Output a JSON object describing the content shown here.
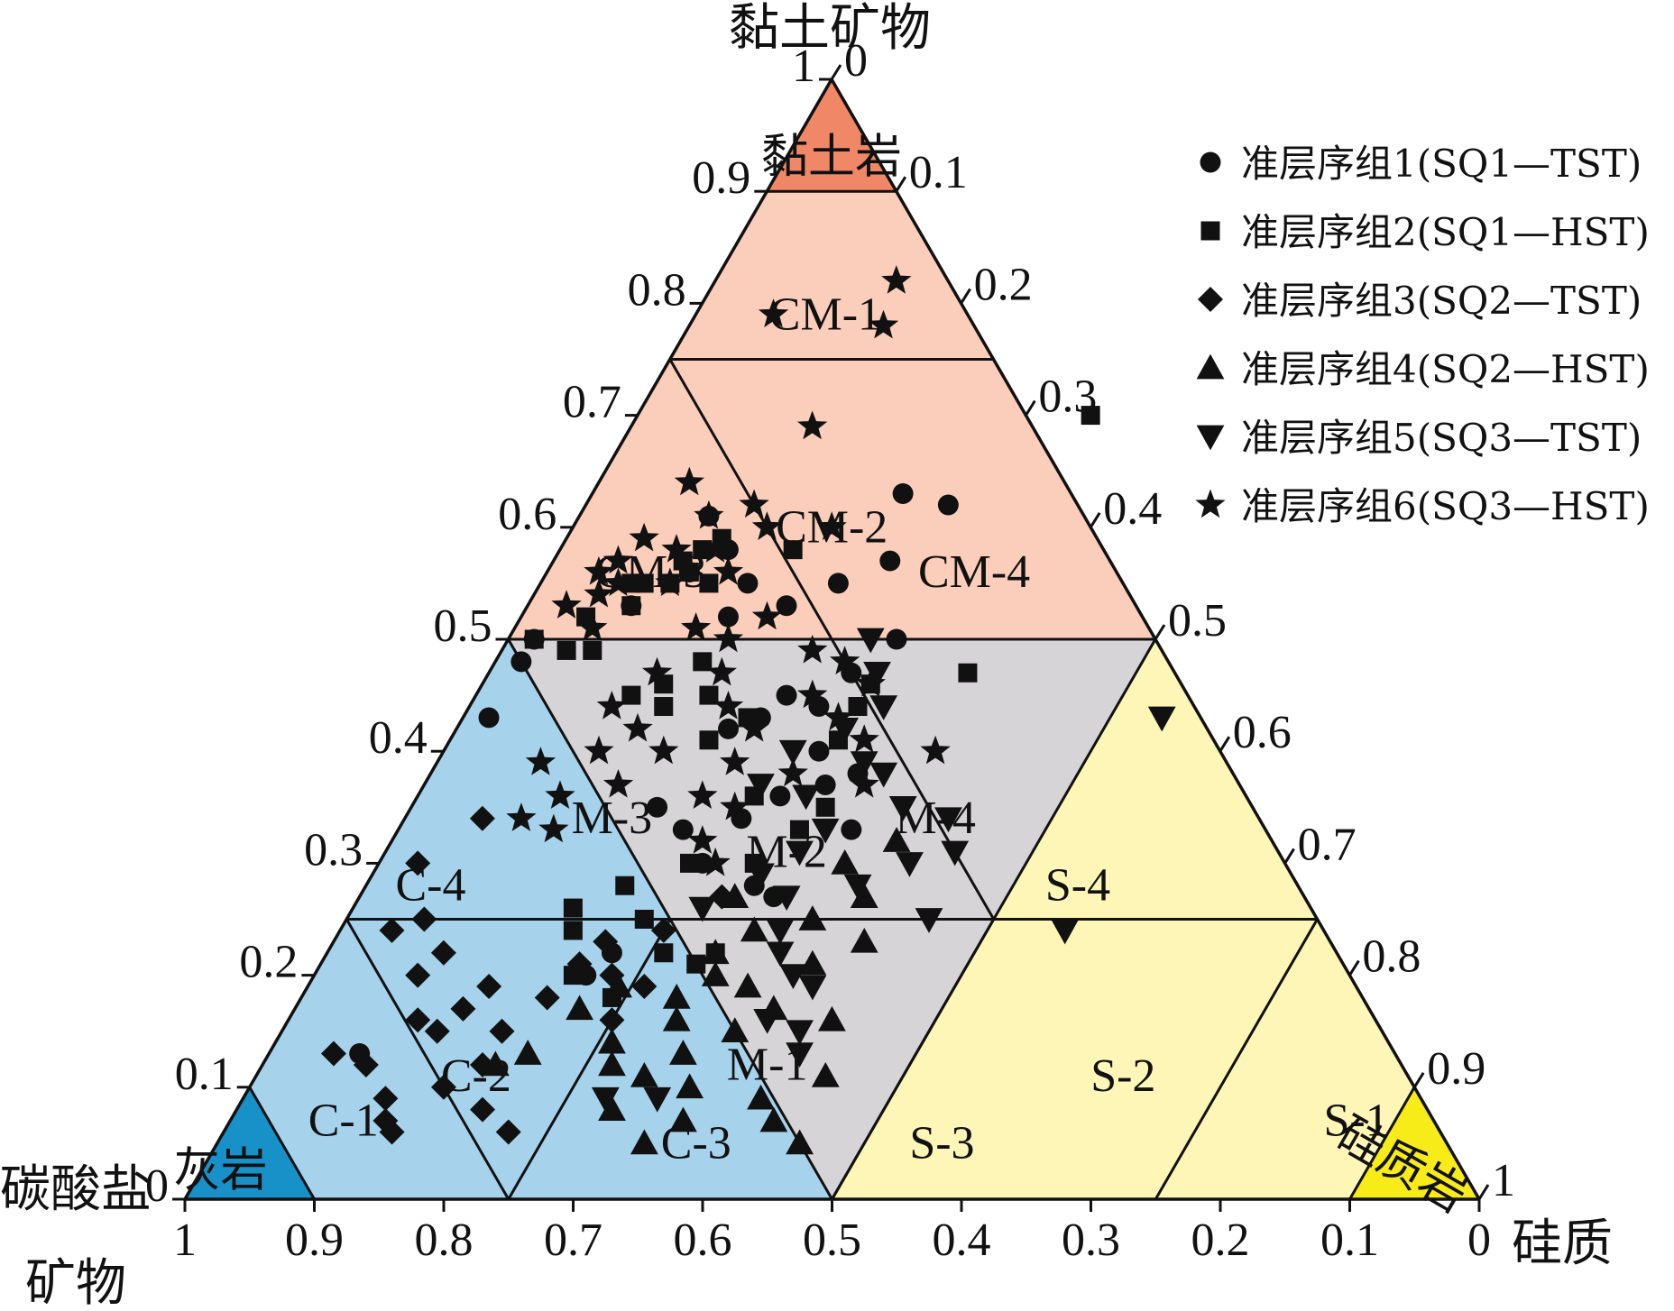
{
  "chart_data": {
    "type": "scatter",
    "subtype": "ternary",
    "axes": {
      "top": {
        "label": "黏土矿物"
      },
      "left": {
        "label_line1": "碳酸盐",
        "label_line2": "矿物"
      },
      "right": {
        "label": "硅质"
      }
    },
    "ticks": {
      "bottom": [
        "1",
        "0.9",
        "0.8",
        "0.7",
        "0.6",
        "0.5",
        "0.4",
        "0.3",
        "0.2",
        "0.1",
        "0"
      ],
      "left": [
        "0",
        "0.1",
        "0.2",
        "0.3",
        "0.4",
        "0.5",
        "0.6",
        "0.7",
        "0.8",
        "0.9",
        "1"
      ],
      "right": [
        "0",
        "0.1",
        "0.2",
        "0.3",
        "0.4",
        "0.5",
        "0.6",
        "0.7",
        "0.8",
        "0.9",
        "1"
      ]
    },
    "zones": {
      "clay_rock": "黏土岩",
      "limestone": "灰岩",
      "siliceous_rock": "硅质岩",
      "CM1": "CM-1",
      "CM2": "CM-2",
      "CM3": "CM-3",
      "CM4": "CM-4",
      "M1": "M-1",
      "M2": "M-2",
      "M3": "M-3",
      "M4": "M-4",
      "C1": "C-1",
      "C2": "C-2",
      "C3": "C-3",
      "C4": "C-4",
      "S1": "S-1",
      "S2": "S-2",
      "S3": "S-3",
      "S4": "S-4"
    },
    "zone_colors": {
      "clay_rock": "#f08868",
      "clay_rich": "#fbcdbb",
      "mixed": "#d6d4d6",
      "carbonate": "#a6d2ec",
      "limestone": "#1890c8",
      "siliceous": "#fdf6b6",
      "siliceous_rock": "#f8ec18"
    },
    "legend": [
      {
        "label": "准层序组1(SQ1—TST)",
        "marker": "circle"
      },
      {
        "label": "准层序组2(SQ1—HST)",
        "marker": "square"
      },
      {
        "label": "准层序组3(SQ2—TST)",
        "marker": "diamond"
      },
      {
        "label": "准层序组4(SQ2—HST)",
        "marker": "triangle-up"
      },
      {
        "label": "准层序组5(SQ3—TST)",
        "marker": "triangle-down"
      },
      {
        "label": "准层序组6(SQ3—HST)",
        "marker": "star"
      }
    ],
    "series": [
      {
        "marker": "circle",
        "points": [
          [
            0.62,
            0.28
          ],
          [
            0.63,
            0.24
          ],
          [
            0.57,
            0.26
          ],
          [
            0.55,
            0.23
          ],
          [
            0.53,
            0.2
          ],
          [
            0.55,
            0.16
          ],
          [
            0.52,
            0.16
          ],
          [
            0.58,
            0.13
          ],
          [
            0.56,
            0.11
          ],
          [
            0.61,
            0.1
          ],
          [
            0.53,
            0.08
          ],
          [
            0.48,
            0.02
          ],
          [
            0.43,
            0.02
          ],
          [
            0.5,
            0.02
          ],
          [
            0.45,
            0.24
          ],
          [
            0.43,
            0.23
          ],
          [
            0.44,
            0.27
          ],
          [
            0.37,
            0.31
          ],
          [
            0.36,
            0.28
          ],
          [
            0.38,
            0.33
          ],
          [
            0.34,
            0.26
          ],
          [
            0.3,
            0.25
          ],
          [
            0.28,
            0.3
          ],
          [
            0.22,
            0.22
          ],
          [
            0.2,
            0.21
          ],
          [
            0.13,
            0.07
          ],
          [
            0.33,
            0.35
          ],
          [
            0.27,
            0.32
          ],
          [
            0.5,
            0.3
          ],
          [
            0.4,
            0.29
          ],
          [
            0.33,
            0.22
          ],
          [
            0.42,
            0.21
          ],
          [
            0.47,
            0.28
          ],
          [
            0.35,
            0.19
          ]
        ]
      },
      {
        "marker": "square",
        "points": [
          [
            0.7,
            0.35
          ],
          [
            0.58,
            0.18
          ],
          [
            0.55,
            0.13
          ],
          [
            0.59,
            0.12
          ],
          [
            0.58,
            0.11
          ],
          [
            0.56,
            0.11
          ],
          [
            0.57,
            0.1
          ],
          [
            0.55,
            0.1
          ],
          [
            0.55,
            0.08
          ],
          [
            0.55,
            0.07
          ],
          [
            0.53,
            0.08
          ],
          [
            0.52,
            0.05
          ],
          [
            0.49,
            0.07
          ],
          [
            0.49,
            0.05
          ],
          [
            0.5,
            0.02
          ],
          [
            0.46,
            0.14
          ],
          [
            0.48,
            0.16
          ],
          [
            0.45,
            0.12
          ],
          [
            0.44,
            0.15
          ],
          [
            0.45,
            0.18
          ],
          [
            0.41,
            0.2
          ],
          [
            0.43,
            0.22
          ],
          [
            0.47,
            0.37
          ],
          [
            0.46,
            0.3
          ],
          [
            0.44,
            0.3
          ],
          [
            0.41,
            0.3
          ],
          [
            0.36,
            0.26
          ],
          [
            0.35,
            0.32
          ],
          [
            0.33,
            0.31
          ],
          [
            0.3,
            0.24
          ],
          [
            0.28,
            0.2
          ],
          [
            0.26,
            0.17
          ],
          [
            0.25,
            0.23
          ],
          [
            0.22,
            0.3
          ],
          [
            0.21,
            0.29
          ],
          [
            0.24,
            0.18
          ],
          [
            0.18,
            0.24
          ],
          [
            0.2,
            0.2
          ],
          [
            0.3,
            0.29
          ],
          [
            0.22,
            0.26
          ]
        ]
      },
      {
        "marker": "diamond",
        "points": [
          [
            0.06,
            0.22
          ],
          [
            0.08,
            0.19
          ],
          [
            0.07,
            0.12
          ],
          [
            0.06,
            0.13
          ],
          [
            0.09,
            0.11
          ],
          [
            0.13,
            0.05
          ],
          [
            0.12,
            0.08
          ],
          [
            0.1,
            0.15
          ],
          [
            0.12,
            0.17
          ],
          [
            0.15,
            0.17
          ],
          [
            0.15,
            0.12
          ],
          [
            0.16,
            0.1
          ],
          [
            0.17,
            0.13
          ],
          [
            0.19,
            0.14
          ],
          [
            0.2,
            0.08
          ],
          [
            0.22,
            0.09
          ],
          [
            0.25,
            0.06
          ],
          [
            0.24,
            0.04
          ],
          [
            0.34,
            0.06
          ],
          [
            0.3,
            0.03
          ],
          [
            0.18,
            0.19
          ],
          [
            0.21,
            0.2
          ],
          [
            0.2,
            0.23
          ],
          [
            0.23,
            0.21
          ],
          [
            0.24,
            0.25
          ],
          [
            0.19,
            0.26
          ],
          [
            0.27,
            0.28
          ],
          [
            0.16,
            0.25
          ]
        ]
      },
      {
        "marker": "triangle-up",
        "points": [
          [
            0.05,
            0.45
          ],
          [
            0.07,
            0.42
          ],
          [
            0.09,
            0.4
          ],
          [
            0.07,
            0.35
          ],
          [
            0.05,
            0.33
          ],
          [
            0.1,
            0.34
          ],
          [
            0.08,
            0.29
          ],
          [
            0.11,
            0.3
          ],
          [
            0.13,
            0.32
          ],
          [
            0.12,
            0.27
          ],
          [
            0.14,
            0.26
          ],
          [
            0.16,
            0.3
          ],
          [
            0.15,
            0.35
          ],
          [
            0.17,
            0.37
          ],
          [
            0.19,
            0.34
          ],
          [
            0.2,
            0.31
          ],
          [
            0.18,
            0.29
          ],
          [
            0.22,
            0.3
          ],
          [
            0.24,
            0.32
          ],
          [
            0.27,
            0.29
          ],
          [
            0.25,
            0.36
          ],
          [
            0.21,
            0.38
          ],
          [
            0.23,
            0.41
          ],
          [
            0.13,
            0.2
          ],
          [
            0.12,
            0.18
          ],
          [
            0.17,
            0.22
          ],
          [
            0.19,
            0.24
          ],
          [
            0.27,
            0.39
          ],
          [
            0.3,
            0.36
          ],
          [
            0.32,
            0.39
          ],
          [
            0.16,
            0.42
          ],
          [
            0.11,
            0.44
          ]
        ]
      },
      {
        "marker": "triangle-down",
        "points": [
          [
            0.24,
            0.56
          ],
          [
            0.43,
            0.54
          ],
          [
            0.25,
            0.45
          ],
          [
            0.31,
            0.44
          ],
          [
            0.3,
            0.41
          ],
          [
            0.28,
            0.38
          ],
          [
            0.35,
            0.38
          ],
          [
            0.38,
            0.35
          ],
          [
            0.39,
            0.33
          ],
          [
            0.42,
            0.3
          ],
          [
            0.44,
            0.32
          ],
          [
            0.36,
            0.3
          ],
          [
            0.33,
            0.33
          ],
          [
            0.31,
            0.32
          ],
          [
            0.29,
            0.3
          ],
          [
            0.27,
            0.33
          ],
          [
            0.24,
            0.34
          ],
          [
            0.22,
            0.35
          ],
          [
            0.2,
            0.37
          ],
          [
            0.16,
            0.37
          ],
          [
            0.13,
            0.41
          ],
          [
            0.15,
            0.4
          ],
          [
            0.09,
            0.32
          ],
          [
            0.09,
            0.28
          ],
          [
            0.19,
            0.39
          ],
          [
            0.34,
            0.42
          ],
          [
            0.4,
            0.27
          ],
          [
            0.47,
            0.3
          ],
          [
            0.5,
            0.28
          ],
          [
            0.37,
            0.26
          ],
          [
            0.26,
            0.27
          ]
        ]
      },
      {
        "marker": "star",
        "points": [
          [
            0.69,
            0.14
          ],
          [
            0.64,
            0.07
          ],
          [
            0.61,
            0.1
          ],
          [
            0.62,
            0.13
          ],
          [
            0.6,
            0.15
          ],
          [
            0.58,
            0.09
          ],
          [
            0.59,
            0.06
          ],
          [
            0.56,
            0.04
          ],
          [
            0.55,
            0.06
          ],
          [
            0.55,
            0.1
          ],
          [
            0.56,
            0.14
          ],
          [
            0.58,
            0.12
          ],
          [
            0.57,
            0.05
          ],
          [
            0.54,
            0.05
          ],
          [
            0.53,
            0.03
          ],
          [
            0.51,
            0.06
          ],
          [
            0.47,
            0.18
          ],
          [
            0.5,
            0.17
          ],
          [
            0.51,
            0.14
          ],
          [
            0.47,
            0.13
          ],
          [
            0.44,
            0.11
          ],
          [
            0.42,
            0.14
          ],
          [
            0.4,
            0.12
          ],
          [
            0.39,
            0.08
          ],
          [
            0.36,
            0.11
          ],
          [
            0.34,
            0.09
          ],
          [
            0.37,
            0.15
          ],
          [
            0.33,
            0.12
          ],
          [
            0.44,
            0.2
          ],
          [
            0.42,
            0.23
          ],
          [
            0.45,
            0.26
          ],
          [
            0.48,
            0.27
          ],
          [
            0.49,
            0.24
          ],
          [
            0.46,
            0.3
          ],
          [
            0.43,
            0.29
          ],
          [
            0.41,
            0.32
          ],
          [
            0.38,
            0.28
          ],
          [
            0.39,
            0.23
          ],
          [
            0.36,
            0.22
          ],
          [
            0.35,
            0.25
          ],
          [
            0.4,
            0.38
          ],
          [
            0.32,
            0.24
          ],
          [
            0.3,
            0.26
          ],
          [
            0.37,
            0.34
          ],
          [
            0.78,
            0.15
          ],
          [
            0.79,
            0.06
          ],
          [
            0.82,
            0.14
          ],
          [
            0.6,
            0.2
          ],
          [
            0.52,
            0.19
          ],
          [
            0.4,
            0.17
          ]
        ]
      }
    ]
  }
}
